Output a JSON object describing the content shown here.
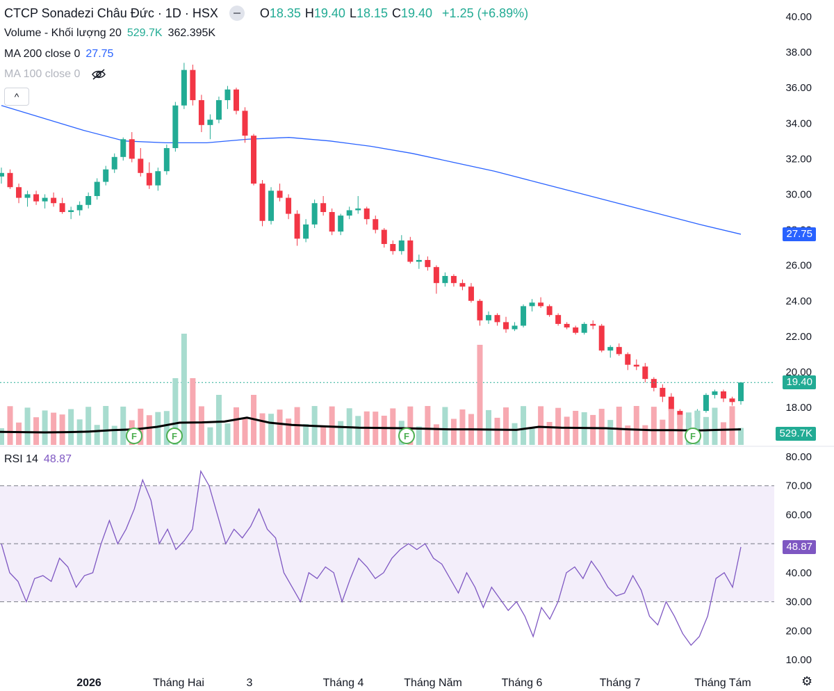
{
  "header": {
    "title": "CTCP Sonadezi Châu Đức · 1D · HSX",
    "ohlc": [
      {
        "k": "O",
        "v": "18.35"
      },
      {
        "k": "H",
        "v": "19.40"
      },
      {
        "k": "L",
        "v": "18.15"
      },
      {
        "k": "C",
        "v": "19.40"
      }
    ],
    "change": "+1.25 (+6.89%)"
  },
  "indicators": {
    "volume_label": "Volume - Khối lượng 20",
    "volume_value": "529.7K",
    "volume_ma": "362.395K",
    "ma200_label": "MA 200 close 0",
    "ma200_value": "27.75",
    "ma100_label": "MA 100 close 0",
    "rsi_label": "RSI 14",
    "rsi_value": "48.87",
    "collapse_symbol": "^"
  },
  "price_axis": [
    "40.00",
    "38.00",
    "36.00",
    "34.00",
    "32.00",
    "30.00",
    "28.00",
    "26.00",
    "24.00",
    "22.00",
    "20.00",
    "18.00"
  ],
  "rsi_axis": [
    "80.00",
    "70.00",
    "60.00",
    "50.00",
    "40.00",
    "30.00",
    "20.00",
    "10.00"
  ],
  "time_axis": [
    "2026",
    "Tháng Hai",
    "3",
    "Tháng 4",
    "Tháng Năm",
    "Tháng 6",
    "Tháng 7",
    "Tháng Tám"
  ],
  "tags": {
    "price": "19.40",
    "ma200": "27.75",
    "volume": "529.7K",
    "rsi": "48.87"
  },
  "flags": [
    "F",
    "F",
    "F",
    "F"
  ],
  "colors": {
    "up": "#22ab94",
    "down": "#f23645",
    "ma200": "#2962ff",
    "vol_ma": "#000000",
    "rsi": "#7e57c2",
    "rsi_band": "#f3eefa"
  },
  "icons": {
    "eye": "eye-off-icon",
    "settings": "gear-icon"
  },
  "chart_data": {
    "type": "candlestick",
    "price_range": [
      16.5,
      40.5
    ],
    "ohlc_sample": [
      [
        31.0,
        31.5,
        30.6,
        31.2
      ],
      [
        31.2,
        31.4,
        30.3,
        30.4
      ],
      [
        30.4,
        30.6,
        29.5,
        29.8
      ],
      [
        29.8,
        30.2,
        29.3,
        30.0
      ],
      [
        30.0,
        30.2,
        29.4,
        29.6
      ],
      [
        29.6,
        30.0,
        29.2,
        29.8
      ],
      [
        29.8,
        30.1,
        29.3,
        29.5
      ],
      [
        29.5,
        29.8,
        28.9,
        29.0
      ],
      [
        29.0,
        29.3,
        28.6,
        29.1
      ],
      [
        29.1,
        29.6,
        28.8,
        29.4
      ],
      [
        29.4,
        30.1,
        29.2,
        29.9
      ],
      [
        29.9,
        30.9,
        29.7,
        30.7
      ],
      [
        30.7,
        31.6,
        30.5,
        31.4
      ],
      [
        31.4,
        32.3,
        31.2,
        32.1
      ],
      [
        32.1,
        33.2,
        31.9,
        33.1
      ],
      [
        33.1,
        33.5,
        31.8,
        32.0
      ],
      [
        32.0,
        32.6,
        31.0,
        31.2
      ],
      [
        31.2,
        31.8,
        30.3,
        30.5
      ],
      [
        30.5,
        31.5,
        30.2,
        31.3
      ],
      [
        31.3,
        32.8,
        31.1,
        32.6
      ],
      [
        32.6,
        35.2,
        32.4,
        35.0
      ],
      [
        35.0,
        37.4,
        34.8,
        37.0
      ],
      [
        37.0,
        37.3,
        35.0,
        35.3
      ],
      [
        35.3,
        35.6,
        33.5,
        33.9
      ],
      [
        33.9,
        34.5,
        33.1,
        34.2
      ],
      [
        34.2,
        35.5,
        34.0,
        35.3
      ],
      [
        35.3,
        36.1,
        34.8,
        35.9
      ],
      [
        35.9,
        36.0,
        34.5,
        34.7
      ],
      [
        34.7,
        34.9,
        32.9,
        33.3
      ],
      [
        33.3,
        33.4,
        30.5,
        30.6
      ],
      [
        30.6,
        30.8,
        28.2,
        28.5
      ],
      [
        28.5,
        30.4,
        28.3,
        30.2
      ],
      [
        30.2,
        30.6,
        29.6,
        29.8
      ],
      [
        29.8,
        30.0,
        28.6,
        28.9
      ],
      [
        28.9,
        29.1,
        27.1,
        27.5
      ],
      [
        27.5,
        28.6,
        27.3,
        28.3
      ],
      [
        28.3,
        29.7,
        28.1,
        29.5
      ],
      [
        29.5,
        29.9,
        28.8,
        29.0
      ],
      [
        29.0,
        29.2,
        27.7,
        27.9
      ],
      [
        27.9,
        28.9,
        27.7,
        28.8
      ],
      [
        28.8,
        29.3,
        28.6,
        29.1
      ],
      [
        29.1,
        29.9,
        28.9,
        29.2
      ],
      [
        29.2,
        29.3,
        28.3,
        28.6
      ],
      [
        28.6,
        28.8,
        27.8,
        28.0
      ],
      [
        28.0,
        28.1,
        27.0,
        27.2
      ],
      [
        27.2,
        27.4,
        26.6,
        26.8
      ],
      [
        26.8,
        27.7,
        26.6,
        27.4
      ],
      [
        27.4,
        27.6,
        26.1,
        26.2
      ],
      [
        26.2,
        26.6,
        25.8,
        26.3
      ],
      [
        26.3,
        26.5,
        25.7,
        25.9
      ],
      [
        25.9,
        26.0,
        24.4,
        25.0
      ],
      [
        25.0,
        25.6,
        24.8,
        25.4
      ],
      [
        25.4,
        25.5,
        24.8,
        25.0
      ],
      [
        25.0,
        25.2,
        24.6,
        24.8
      ],
      [
        24.8,
        25.0,
        23.9,
        24.0
      ],
      [
        24.0,
        24.1,
        22.6,
        22.9
      ],
      [
        22.9,
        23.4,
        22.7,
        23.2
      ],
      [
        23.2,
        23.3,
        22.6,
        22.8
      ],
      [
        22.8,
        23.1,
        22.2,
        22.4
      ],
      [
        22.4,
        22.8,
        22.3,
        22.6
      ],
      [
        22.6,
        23.8,
        22.5,
        23.7
      ],
      [
        23.7,
        24.1,
        23.4,
        23.9
      ],
      [
        23.9,
        24.2,
        23.6,
        23.7
      ],
      [
        23.7,
        23.8,
        23.1,
        23.2
      ],
      [
        23.2,
        23.3,
        22.6,
        22.7
      ],
      [
        22.7,
        22.8,
        22.4,
        22.5
      ],
      [
        22.5,
        22.6,
        22.1,
        22.2
      ],
      [
        22.2,
        22.8,
        22.1,
        22.7
      ],
      [
        22.7,
        22.9,
        22.4,
        22.6
      ],
      [
        22.6,
        22.7,
        21.1,
        21.2
      ],
      [
        21.2,
        21.5,
        20.8,
        21.4
      ],
      [
        21.4,
        21.6,
        20.9,
        21.0
      ],
      [
        21.0,
        21.1,
        20.1,
        20.4
      ],
      [
        20.4,
        20.7,
        20.1,
        20.3
      ],
      [
        20.3,
        20.5,
        19.4,
        19.6
      ],
      [
        19.6,
        19.7,
        18.9,
        19.1
      ],
      [
        19.1,
        19.3,
        18.3,
        18.6
      ],
      [
        18.6,
        18.8,
        17.6,
        17.8
      ],
      [
        17.8,
        17.9,
        16.9,
        17.0
      ],
      [
        17.0,
        17.6,
        16.9,
        17.4
      ],
      [
        17.4,
        17.9,
        17.2,
        17.8
      ],
      [
        17.8,
        18.8,
        17.7,
        18.7
      ],
      [
        18.7,
        19.0,
        18.5,
        18.9
      ],
      [
        18.9,
        19.0,
        18.3,
        18.5
      ],
      [
        18.5,
        18.6,
        18.1,
        18.3
      ],
      [
        18.35,
        19.4,
        18.15,
        19.4
      ]
    ],
    "ma200": [
      35.0,
      34.3,
      33.6,
      33.0,
      32.9,
      32.9,
      33.1,
      33.2,
      33.0,
      32.7,
      32.3,
      31.8,
      31.3,
      30.7,
      30.1,
      29.5,
      28.9,
      28.3,
      27.75
    ],
    "volume_range": [
      0,
      3000000
    ],
    "volume_ma": [
      0.27,
      0.26,
      0.25,
      0.26,
      0.28,
      0.33,
      0.36,
      0.45,
      0.6,
      0.61,
      0.64,
      0.78,
      0.6,
      0.52,
      0.48,
      0.45,
      0.42,
      0.41,
      0.4,
      0.38,
      0.36,
      0.36,
      0.35,
      0.34,
      0.45,
      0.42,
      0.41,
      0.4,
      0.36,
      0.33,
      0.33,
      0.32,
      0.34,
      0.36
    ],
    "rsi_range": [
      10,
      80
    ],
    "rsi": [
      50,
      40,
      37,
      30,
      38,
      39,
      37,
      45,
      42,
      35,
      39,
      40,
      50,
      58,
      50,
      55,
      62,
      72,
      65,
      50,
      55,
      48,
      51,
      55,
      75,
      70,
      60,
      50,
      55,
      52,
      56,
      62,
      55,
      52,
      40,
      35,
      30,
      40,
      38,
      42,
      40,
      30,
      38,
      45,
      42,
      38,
      40,
      45,
      48,
      50,
      48,
      50,
      45,
      43,
      38,
      33,
      40,
      35,
      28,
      35,
      31,
      27,
      30,
      25,
      18,
      28,
      24,
      30,
      40,
      42,
      38,
      44,
      40,
      35,
      32,
      33,
      39,
      34,
      25,
      22,
      30,
      25,
      19,
      15,
      18,
      25,
      38,
      40,
      35,
      48.87
    ],
    "rsi_levels": [
      70,
      50,
      30
    ]
  }
}
